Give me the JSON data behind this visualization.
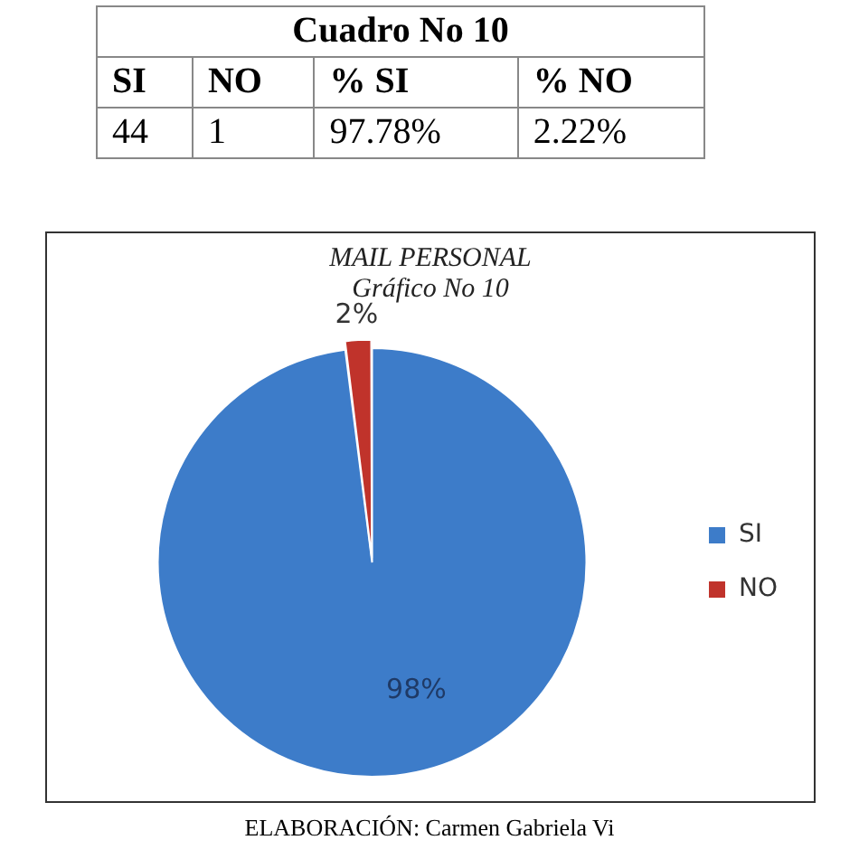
{
  "chart_data": [
    {
      "type": "other",
      "title": "Cuadro No 10",
      "annotations": [
        "SI",
        "NO",
        "% SI",
        "% NO",
        "44",
        "1",
        "97.78%",
        "2.22%"
      ]
    },
    {
      "type": "pie",
      "title": "MAIL PERSONAL",
      "subtitle": "Gráfico No 10",
      "categories": [
        "SI",
        "NO"
      ],
      "values": [
        98,
        2
      ],
      "value_labels": [
        "98%",
        "2%"
      ],
      "colors": [
        "#3d7cc9",
        "#c0332b"
      ],
      "legend": "right",
      "annotations": [
        "ELABORACIÓN: Carmen Gabriela Vi"
      ]
    }
  ]
}
